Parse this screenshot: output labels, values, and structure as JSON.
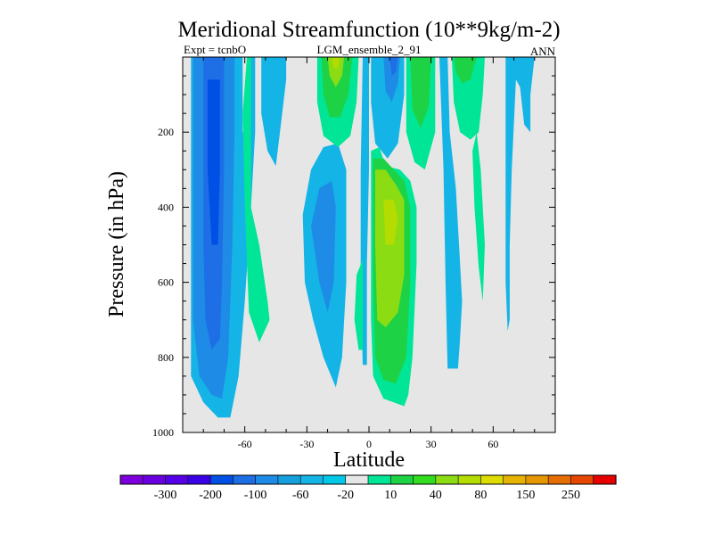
{
  "chart_data": {
    "type": "contour",
    "title": "Meridional Streamfunction (10**9kg/m-2)",
    "subtitle_left": "Expt = tcnbO",
    "subtitle_center": "LGM_ensemble_2_91",
    "subtitle_right": "ANN",
    "xlabel": "Latitude",
    "ylabel": "Pressure (in hPa)",
    "xlim": [
      -90,
      90
    ],
    "ylim": [
      1000,
      0
    ],
    "x_ticks": [
      {
        "value": -60,
        "label": "-60"
      },
      {
        "value": -30,
        "label": "-30"
      },
      {
        "value": 0,
        "label": "0"
      },
      {
        "value": 30,
        "label": "30"
      },
      {
        "value": 60,
        "label": "60"
      }
    ],
    "y_ticks": [
      {
        "value": 200,
        "label": "200"
      },
      {
        "value": 400,
        "label": "400"
      },
      {
        "value": 600,
        "label": "600"
      },
      {
        "value": 800,
        "label": "800"
      },
      {
        "value": 1000,
        "label": "1000"
      }
    ],
    "colorbar": {
      "colors": [
        "#7d00dc",
        "#6a00e0",
        "#5500e6",
        "#3c00e6",
        "#0050e6",
        "#1e6ee6",
        "#1e8ce6",
        "#14a0dc",
        "#14b4e6",
        "#00c8e6",
        "#e6e6e6",
        "#00e696",
        "#1ed246",
        "#32dc1e",
        "#8cdc14",
        "#b4dc00",
        "#dcdc00",
        "#e6b400",
        "#e69600",
        "#e66e00",
        "#e64600",
        "#e60000"
      ],
      "labels": [
        {
          "after_bin": 1,
          "text": "-300"
        },
        {
          "after_bin": 3,
          "text": "-200"
        },
        {
          "after_bin": 5,
          "text": "-100"
        },
        {
          "after_bin": 7,
          "text": "-60"
        },
        {
          "after_bin": 9,
          "text": "-20"
        },
        {
          "after_bin": 11,
          "text": "10"
        },
        {
          "after_bin": 13,
          "text": "40"
        },
        {
          "after_bin": 15,
          "text": "80"
        },
        {
          "after_bin": 17,
          "text": "150"
        },
        {
          "after_bin": 19,
          "text": "250"
        }
      ]
    },
    "regions": [
      {
        "name": "sh-cell-outer",
        "color": "#14b4e6",
        "pts": [
          [
            -86,
            0
          ],
          [
            -55,
            0
          ],
          [
            -55,
            200
          ],
          [
            -57,
            400
          ],
          [
            -60,
            650
          ],
          [
            -63,
            850
          ],
          [
            -67,
            960
          ],
          [
            -73,
            960
          ],
          [
            -80,
            920
          ],
          [
            -86,
            850
          ]
        ]
      },
      {
        "name": "sh-cell-mid",
        "color": "#1e8ce6",
        "pts": [
          [
            -85,
            0
          ],
          [
            -65,
            0
          ],
          [
            -65,
            200
          ],
          [
            -66,
            500
          ],
          [
            -68,
            800
          ],
          [
            -71,
            910
          ],
          [
            -76,
            900
          ],
          [
            -82,
            850
          ],
          [
            -85,
            700
          ]
        ]
      },
      {
        "name": "sh-cell-inner",
        "color": "#1e6ee6",
        "pts": [
          [
            -80,
            0
          ],
          [
            -70,
            0
          ],
          [
            -70,
            300
          ],
          [
            -71,
            600
          ],
          [
            -72,
            750
          ],
          [
            -76,
            780
          ],
          [
            -79,
            700
          ],
          [
            -80,
            500
          ]
        ]
      },
      {
        "name": "sh-cell-core",
        "color": "#0050e6",
        "pts": [
          [
            -78,
            60
          ],
          [
            -72,
            60
          ],
          [
            -72,
            300
          ],
          [
            -73,
            500
          ],
          [
            -76,
            500
          ],
          [
            -78,
            300
          ]
        ]
      },
      {
        "name": "sh-gap",
        "color": "#e6e6e6",
        "pts": [
          [
            -61,
            0
          ],
          [
            -59,
            0
          ],
          [
            -59,
            200
          ],
          [
            -61,
            200
          ]
        ]
      },
      {
        "name": "sh-green-tongue",
        "color": "#00e696",
        "pts": [
          [
            -59,
            0
          ],
          [
            -57,
            0
          ],
          [
            -57,
            400
          ],
          [
            -53,
            500
          ],
          [
            -49,
            650
          ],
          [
            -48,
            700
          ],
          [
            -53,
            760
          ],
          [
            -58,
            680
          ],
          [
            -60,
            400
          ],
          [
            -61,
            150
          ]
        ]
      },
      {
        "name": "sh-blue-upper",
        "color": "#14b4e6",
        "pts": [
          [
            -52,
            0
          ],
          [
            -40,
            0
          ],
          [
            -40,
            60
          ],
          [
            -43,
            200
          ],
          [
            -45,
            290
          ],
          [
            -49,
            250
          ],
          [
            -52,
            150
          ]
        ]
      },
      {
        "name": "sh-blue-mid",
        "color": "#14b4e6",
        "pts": [
          [
            -32,
            420
          ],
          [
            -28,
            300
          ],
          [
            -22,
            240
          ],
          [
            -15,
            230
          ],
          [
            -11,
            300
          ],
          [
            -11,
            600
          ],
          [
            -13,
            800
          ],
          [
            -16,
            880
          ],
          [
            -22,
            800
          ],
          [
            -27,
            700
          ],
          [
            -31,
            600
          ]
        ]
      },
      {
        "name": "sh-blue-mid-core",
        "color": "#1e8ce6",
        "pts": [
          [
            -28,
            450
          ],
          [
            -24,
            350
          ],
          [
            -18,
            330
          ],
          [
            -16,
            400
          ],
          [
            -17,
            600
          ],
          [
            -20,
            680
          ],
          [
            -24,
            600
          ]
        ]
      },
      {
        "name": "upper-green-outer",
        "color": "#00e696",
        "pts": [
          [
            -25,
            0
          ],
          [
            -5,
            0
          ],
          [
            -6,
            120
          ],
          [
            -9,
            210
          ],
          [
            -15,
            240
          ],
          [
            -22,
            210
          ],
          [
            -25,
            120
          ]
        ]
      },
      {
        "name": "upper-green-mid",
        "color": "#1ed246",
        "pts": [
          [
            -23,
            0
          ],
          [
            -8,
            0
          ],
          [
            -10,
            100
          ],
          [
            -14,
            160
          ],
          [
            -19,
            160
          ],
          [
            -22,
            100
          ]
        ]
      },
      {
        "name": "upper-green-inner",
        "color": "#8cdc14",
        "pts": [
          [
            -20,
            0
          ],
          [
            -12,
            0
          ],
          [
            -13,
            50
          ],
          [
            -16,
            80
          ],
          [
            -19,
            50
          ]
        ]
      },
      {
        "name": "upper-green-core",
        "color": "#b4dc00",
        "pts": [
          [
            -18,
            0
          ],
          [
            -14,
            0
          ],
          [
            -15,
            30
          ],
          [
            -17,
            30
          ]
        ]
      },
      {
        "name": "equatorial-blue-thin",
        "color": "#14b4e6",
        "pts": [
          [
            -3,
            0
          ],
          [
            0,
            0
          ],
          [
            0,
            300
          ],
          [
            -1,
            550
          ],
          [
            -1,
            820
          ],
          [
            -3,
            820
          ],
          [
            -4,
            600
          ],
          [
            -4,
            300
          ]
        ]
      },
      {
        "name": "equatorial-green-thin",
        "color": "#00e696",
        "pts": [
          [
            -6,
            580
          ],
          [
            -3,
            540
          ],
          [
            -3,
            780
          ],
          [
            -5,
            780
          ],
          [
            -7,
            700
          ]
        ]
      },
      {
        "name": "upper-blue-north",
        "color": "#14b4e6",
        "pts": [
          [
            1,
            0
          ],
          [
            17,
            0
          ],
          [
            17,
            100
          ],
          [
            14,
            230
          ],
          [
            9,
            270
          ],
          [
            3,
            230
          ],
          [
            1,
            120
          ]
        ]
      },
      {
        "name": "upper-blue-north-core",
        "color": "#1e8ce6",
        "pts": [
          [
            7,
            0
          ],
          [
            15,
            0
          ],
          [
            14,
            70
          ],
          [
            11,
            120
          ],
          [
            8,
            90
          ]
        ]
      },
      {
        "name": "upper-blue-north-inner",
        "color": "#1e6ee6",
        "pts": [
          [
            10,
            0
          ],
          [
            14,
            0
          ],
          [
            13,
            40
          ],
          [
            11,
            50
          ]
        ]
      },
      {
        "name": "nh-green-outer",
        "color": "#00e696",
        "pts": [
          [
            1,
            250
          ],
          [
            5,
            240
          ],
          [
            8,
            290
          ],
          [
            15,
            300
          ],
          [
            20,
            330
          ],
          [
            23,
            400
          ],
          [
            23,
            550
          ],
          [
            21,
            800
          ],
          [
            19,
            900
          ],
          [
            17,
            930
          ],
          [
            12,
            920
          ],
          [
            7,
            910
          ],
          [
            2,
            850
          ],
          [
            1,
            700
          ],
          [
            1,
            450
          ]
        ]
      },
      {
        "name": "nh-green-mid",
        "color": "#1ed246",
        "pts": [
          [
            2,
            270
          ],
          [
            7,
            270
          ],
          [
            12,
            300
          ],
          [
            17,
            330
          ],
          [
            20,
            400
          ],
          [
            20,
            600
          ],
          [
            18,
            800
          ],
          [
            13,
            870
          ],
          [
            7,
            860
          ],
          [
            3,
            800
          ],
          [
            2,
            600
          ]
        ]
      },
      {
        "name": "nh-green-inner",
        "color": "#8cdc14",
        "pts": [
          [
            3,
            300
          ],
          [
            8,
            300
          ],
          [
            13,
            340
          ],
          [
            17,
            380
          ],
          [
            17,
            580
          ],
          [
            14,
            680
          ],
          [
            8,
            720
          ],
          [
            4,
            700
          ],
          [
            3,
            500
          ]
        ]
      },
      {
        "name": "nh-green-core",
        "color": "#b4dc00",
        "pts": [
          [
            7,
            380
          ],
          [
            12,
            380
          ],
          [
            14,
            430
          ],
          [
            12,
            500
          ],
          [
            8,
            500
          ]
        ]
      },
      {
        "name": "nh-green-upper",
        "color": "#00e696",
        "pts": [
          [
            18,
            0
          ],
          [
            32,
            0
          ],
          [
            32,
            200
          ],
          [
            27,
            300
          ],
          [
            22,
            280
          ],
          [
            18,
            200
          ]
        ]
      },
      {
        "name": "nh-green-upper-mid",
        "color": "#1ed246",
        "pts": [
          [
            20,
            0
          ],
          [
            30,
            0
          ],
          [
            29,
            130
          ],
          [
            25,
            190
          ],
          [
            21,
            140
          ]
        ]
      },
      {
        "name": "nh-blue-mid",
        "color": "#14b4e6",
        "pts": [
          [
            34,
            0
          ],
          [
            38,
            0
          ],
          [
            39,
            200
          ],
          [
            42,
            350
          ],
          [
            44,
            550
          ],
          [
            45,
            650
          ],
          [
            44,
            750
          ],
          [
            43,
            830
          ],
          [
            38,
            830
          ],
          [
            37,
            600
          ],
          [
            36,
            300
          ],
          [
            35,
            150
          ]
        ]
      },
      {
        "name": "nh-green-east",
        "color": "#00e696",
        "pts": [
          [
            40,
            0
          ],
          [
            56,
            0
          ],
          [
            55,
            100
          ],
          [
            53,
            200
          ],
          [
            49,
            220
          ],
          [
            44,
            200
          ],
          [
            41,
            120
          ]
        ]
      },
      {
        "name": "nh-green-east-mid",
        "color": "#1ed246",
        "pts": [
          [
            41,
            0
          ],
          [
            52,
            0
          ],
          [
            49,
            60
          ],
          [
            45,
            70
          ],
          [
            42,
            40
          ]
        ]
      },
      {
        "name": "nh-green-tail",
        "color": "#00e696",
        "pts": [
          [
            52,
            200
          ],
          [
            54,
            300
          ],
          [
            56,
            500
          ],
          [
            55,
            650
          ],
          [
            53,
            560
          ],
          [
            51,
            400
          ],
          [
            50,
            250
          ]
        ]
      },
      {
        "name": "nh-blue-east",
        "color": "#14b4e6",
        "pts": [
          [
            66,
            0
          ],
          [
            80,
            0
          ],
          [
            78,
            100
          ],
          [
            78,
            200
          ],
          [
            75,
            180
          ],
          [
            73,
            80
          ],
          [
            71,
            60
          ],
          [
            69,
            300
          ],
          [
            68,
            500
          ],
          [
            68,
            700
          ],
          [
            67,
            730
          ],
          [
            66,
            600
          ],
          [
            66,
            300
          ]
        ]
      }
    ]
  }
}
